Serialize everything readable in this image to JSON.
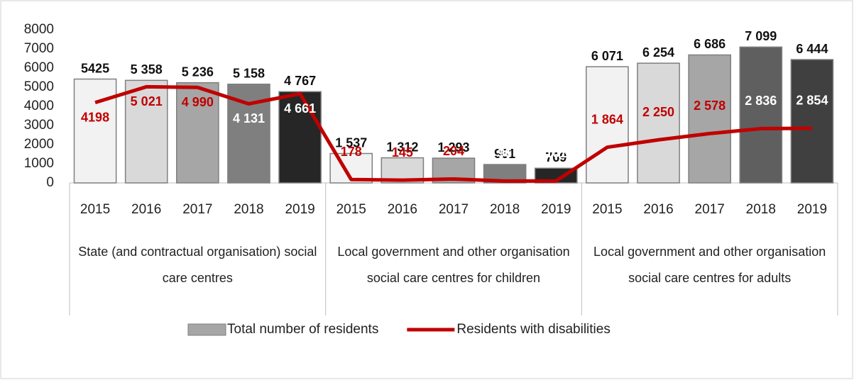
{
  "chart_data": {
    "type": "combo",
    "groups": [
      {
        "label": "State (and contractual organisation) social care centres",
        "categories": [
          "2015",
          "2016",
          "2017",
          "2018",
          "2019"
        ]
      },
      {
        "label": "Local government and other organisation social care centres for children",
        "categories": [
          "2015",
          "2016",
          "2017",
          "2018",
          "2019"
        ]
      },
      {
        "label": "Local government and other organisation social care centres for adults",
        "categories": [
          "2015",
          "2016",
          "2017",
          "2018",
          "2019"
        ]
      }
    ],
    "series": [
      {
        "name": "Total number of residents",
        "kind": "bar",
        "color": "#a6a6a6",
        "colors": [
          "#f2f2f2",
          "#d9d9d9",
          "#a6a6a6",
          "#7f7f7f",
          "#262626",
          "#f2f2f2",
          "#d9d9d9",
          "#a6a6a6",
          "#7f7f7f",
          "#262626",
          "#f2f2f2",
          "#d9d9d9",
          "#a6a6a6",
          "#5f5f5f",
          "#404040"
        ],
        "values": [
          5425,
          5358,
          5236,
          5158,
          4767,
          1537,
          1312,
          1293,
          961,
          769,
          6071,
          6254,
          6686,
          7099,
          6444
        ],
        "value_labels": [
          "5425",
          "5 358",
          "5 236",
          "5 158",
          "4 767",
          "1 537",
          "1 312",
          "1 293",
          "961",
          "769",
          "6 071",
          "6 254",
          "6 686",
          "7 099",
          "6 444"
        ]
      },
      {
        "name": "Residents with disabilities",
        "kind": "line",
        "color": "#c00000",
        "values": [
          4198,
          5021,
          4990,
          4131,
          4661,
          178,
          145,
          204,
          96,
          101,
          1864,
          2250,
          2578,
          2836,
          2854
        ],
        "value_labels": [
          "4198",
          "5 021",
          "4 990",
          "4 131",
          "4 661",
          "178",
          "145",
          "204",
          "96",
          "101",
          "1 864",
          "2 250",
          "2 578",
          "2 836",
          "2 854"
        ]
      }
    ],
    "ylim": [
      0,
      8000
    ],
    "yticks": [
      0,
      1000,
      2000,
      3000,
      4000,
      5000,
      6000,
      7000,
      8000
    ],
    "grid": false
  }
}
